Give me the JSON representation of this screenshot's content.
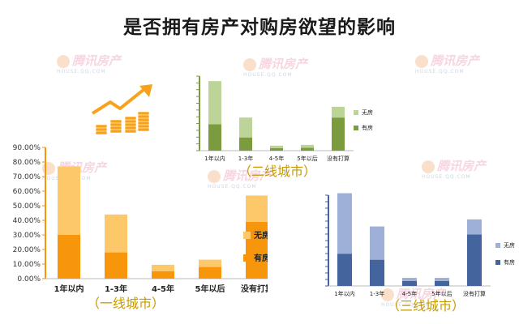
{
  "page": {
    "title": "是否拥有房产对购房欲望的影响"
  },
  "watermark": {
    "brand": "腾讯房产",
    "domain": "HOUSE.QQ.COM"
  },
  "colors": {
    "tier1_no_house": "#fcc86a",
    "tier1_has_house": "#f7960b",
    "tier2_no_house": "#bdd498",
    "tier2_has_house": "#7a9c3f",
    "tier3_no_house": "#9fb0d8",
    "tier3_has_house": "#44649e",
    "subtitle": "#c79a00"
  },
  "chart_data": [
    {
      "type": "bar",
      "stacked": true,
      "title": "（一线城市）",
      "categories": [
        "1年以内",
        "1-3年",
        "4-5年",
        "5年以后",
        "没有打算"
      ],
      "series": [
        {
          "name": "有房",
          "values": [
            0.3,
            0.18,
            0.05,
            0.08,
            0.39
          ]
        },
        {
          "name": "无房",
          "values": [
            0.47,
            0.26,
            0.045,
            0.05,
            0.18
          ]
        }
      ],
      "ylim": [
        0,
        0.9
      ],
      "yticks": [
        "0.00%",
        "10.00%",
        "20.00%",
        "30.00%",
        "40.00%",
        "50.00%",
        "60.00%",
        "70.00%",
        "80.00%",
        "90.00%"
      ],
      "legend": "right",
      "grid": false
    },
    {
      "type": "bar",
      "stacked": true,
      "title": "（二线城市）",
      "categories": [
        "1年以内",
        "1-3年",
        "4-5年",
        "5年以后",
        "没有打算"
      ],
      "series": [
        {
          "name": "有房",
          "values": [
            0.32,
            0.16,
            0.03,
            0.035,
            0.4
          ]
        },
        {
          "name": "无房",
          "values": [
            0.52,
            0.24,
            0.03,
            0.035,
            0.13
          ]
        }
      ],
      "ylim": [
        0,
        0.9
      ],
      "yticks": [],
      "legend": "right",
      "grid": false
    },
    {
      "type": "bar",
      "stacked": true,
      "title": "（三线城市）",
      "categories": [
        "1年以内",
        "1-3年",
        "4-5年",
        "5年以后",
        "没有打算"
      ],
      "series": [
        {
          "name": "有房",
          "values": [
            0.32,
            0.26,
            0.05,
            0.05,
            0.51
          ]
        },
        {
          "name": "无房",
          "values": [
            0.6,
            0.33,
            0.03,
            0.03,
            0.15
          ]
        }
      ],
      "ylim": [
        0,
        0.9
      ],
      "yticks": [],
      "legend": "right",
      "grid": false
    }
  ]
}
